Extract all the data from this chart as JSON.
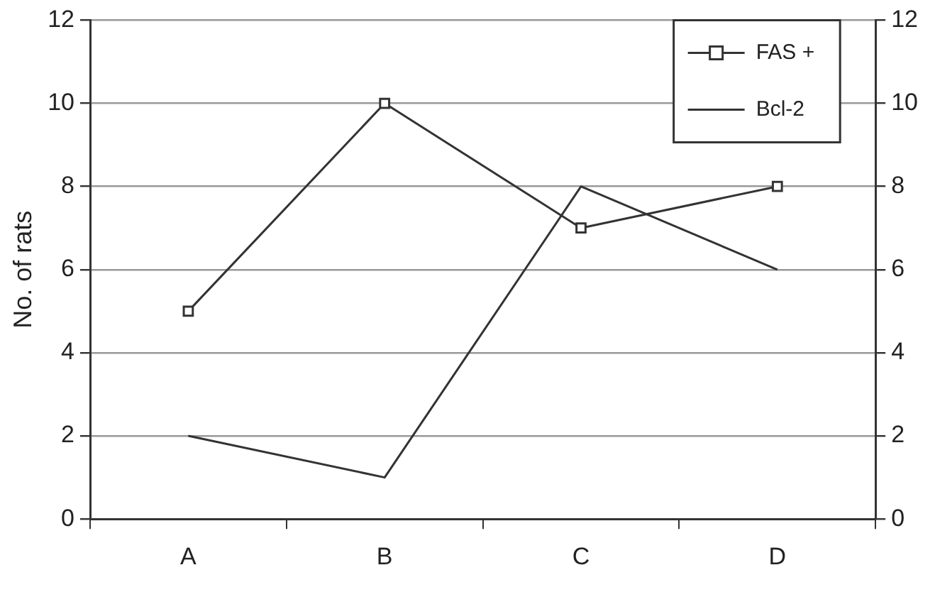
{
  "chart_data": {
    "type": "line",
    "ylabel": "No. of rats",
    "categories": [
      "A",
      "B",
      "C",
      "D"
    ],
    "series": [
      {
        "name": "FAS +",
        "color": "#333333",
        "values": [
          5,
          10,
          7,
          8
        ],
        "marker": "square"
      },
      {
        "name": "Bcl-2",
        "color": "#333333",
        "values": [
          2,
          1,
          8,
          6
        ],
        "marker": "none"
      }
    ],
    "ylim": [
      0,
      12
    ],
    "yticks": [
      0,
      2,
      4,
      6,
      8,
      10,
      12
    ],
    "y2lim": [
      0,
      12
    ],
    "y2ticks": [
      0,
      2,
      4,
      6,
      8,
      10,
      12
    ],
    "grid": "y",
    "legend": "top right",
    "line_style": "solid"
  }
}
